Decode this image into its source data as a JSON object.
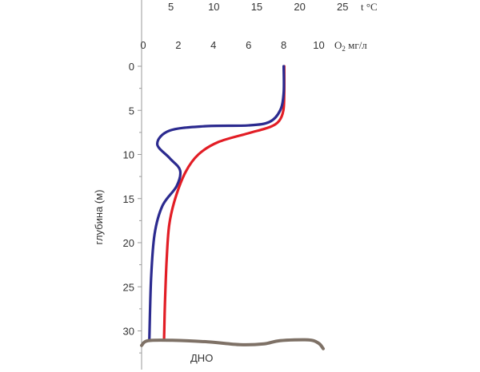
{
  "chart_data": {
    "type": "line",
    "y_axis": {
      "label": "глубина (м)",
      "range": [
        0,
        33
      ],
      "ticks": [
        0,
        5,
        10,
        15,
        20,
        25,
        30
      ],
      "inverted": true
    },
    "x_axis_temperature": {
      "unit_label": "t °C",
      "range": [
        0,
        25
      ],
      "ticks": [
        5,
        10,
        15,
        20,
        25
      ],
      "position": "top"
    },
    "x_axis_oxygen": {
      "unit_label_main": "O",
      "unit_label_sub": "2",
      "unit_label_rest": " мг/л",
      "range": [
        0,
        10
      ],
      "ticks": [
        0,
        2,
        4,
        6,
        8,
        10
      ],
      "position": "top"
    },
    "series": [
      {
        "axis": "temperature",
        "color": "#e21d25",
        "points": [
          [
            18.2,
            0
          ],
          [
            18.2,
            3
          ],
          [
            18.1,
            5
          ],
          [
            17.6,
            6.2
          ],
          [
            16.5,
            6.9
          ],
          [
            14,
            7.6
          ],
          [
            10.5,
            8.6
          ],
          [
            8.2,
            10
          ],
          [
            6.7,
            12
          ],
          [
            5.5,
            15
          ],
          [
            4.8,
            18
          ],
          [
            4.5,
            22
          ],
          [
            4.3,
            27
          ],
          [
            4.2,
            31
          ]
        ]
      },
      {
        "axis": "oxygen",
        "color": "#2b2a8f",
        "points": [
          [
            8.0,
            0
          ],
          [
            8.0,
            3
          ],
          [
            7.8,
            5
          ],
          [
            7.2,
            6.3
          ],
          [
            6.0,
            6.7
          ],
          [
            3.5,
            6.8
          ],
          [
            1.5,
            7.3
          ],
          [
            0.8,
            8.8
          ],
          [
            1.5,
            10.4
          ],
          [
            2.1,
            11.8
          ],
          [
            1.9,
            13.6
          ],
          [
            1.1,
            15.8
          ],
          [
            0.65,
            19
          ],
          [
            0.45,
            24
          ],
          [
            0.35,
            31
          ]
        ]
      }
    ],
    "bottom_label": "ДНО",
    "bottom_color": "#7e7166",
    "bottom_depth": 31.2
  }
}
